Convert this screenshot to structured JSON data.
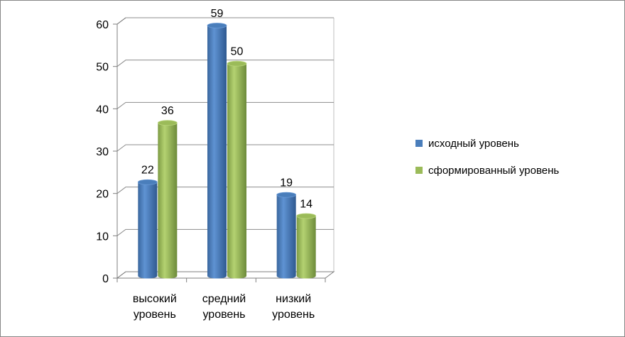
{
  "chart_data": {
    "type": "bar",
    "categories": [
      [
        "высокий",
        "уровень"
      ],
      [
        "средний",
        "уровень"
      ],
      [
        "низкий",
        "уровень"
      ]
    ],
    "series": [
      {
        "name": "исходный уровень",
        "values": [
          22,
          59,
          19
        ],
        "color": "#4A7EBB"
      },
      {
        "name": "сформированный уровень",
        "values": [
          36,
          50,
          14
        ],
        "color": "#9BBB59"
      }
    ],
    "yticks": [
      "0",
      "10",
      "20",
      "30",
      "40",
      "50",
      "60"
    ],
    "ylim": [
      0,
      60
    ],
    "legend_position": "right",
    "bar_style": "3d-cylinder"
  }
}
